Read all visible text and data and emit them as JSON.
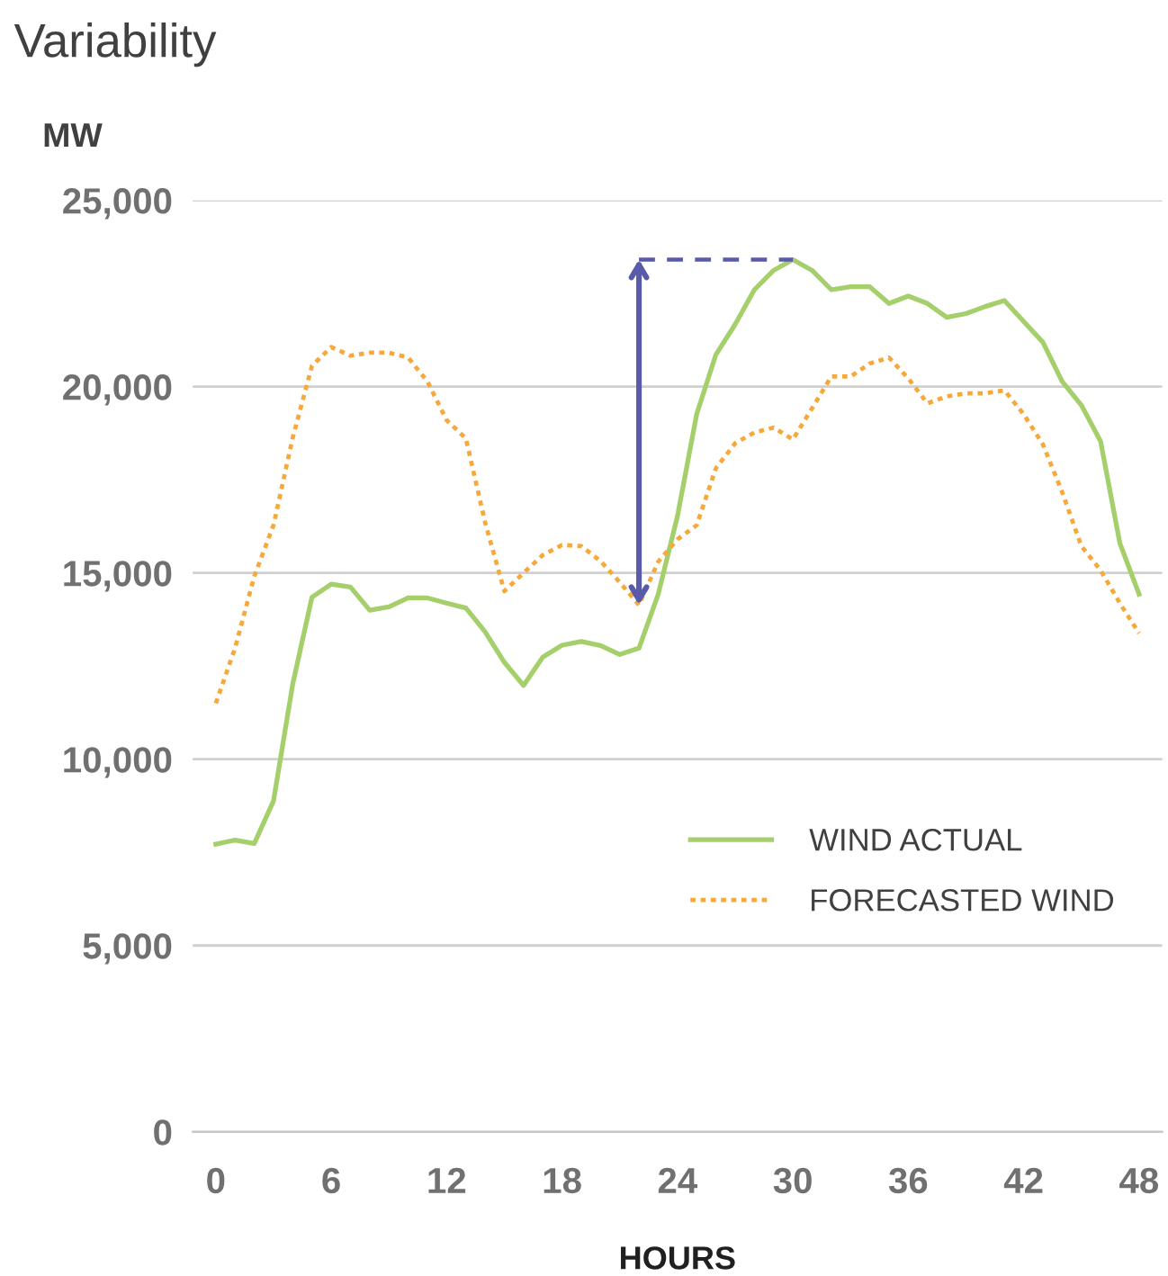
{
  "chart_data": {
    "type": "line",
    "title": "Variability",
    "ylabel": "MW",
    "xlabel": "HOURS",
    "x": [
      0,
      1,
      2,
      3,
      4,
      5,
      6,
      7,
      8,
      9,
      10,
      11,
      12,
      13,
      14,
      15,
      16,
      17,
      18,
      19,
      20,
      21,
      22,
      23,
      24,
      25,
      26,
      27,
      28,
      29,
      30,
      31,
      32,
      33,
      34,
      35,
      36,
      37,
      38,
      39,
      40,
      41,
      42,
      43,
      44,
      45,
      46,
      47,
      48
    ],
    "series": [
      {
        "name": "WIND ACTUAL",
        "color": "#a5cf6a",
        "line_style": "solid",
        "values": [
          7720,
          7830,
          7740,
          8880,
          12020,
          14350,
          14700,
          14620,
          14000,
          14090,
          14330,
          14330,
          14190,
          14060,
          13420,
          12600,
          11980,
          12740,
          13060,
          13160,
          13050,
          12810,
          12980,
          14430,
          16520,
          19260,
          20860,
          21670,
          22600,
          23120,
          23410,
          23120,
          22600,
          22680,
          22680,
          22230,
          22430,
          22230,
          21860,
          21960,
          22150,
          22310,
          21750,
          21190,
          20140,
          19500,
          18530,
          15800,
          14430
        ]
      },
      {
        "name": "FORECASTED WIND",
        "color": "#f7a83a",
        "line_style": "dotted",
        "values": [
          11500,
          12980,
          14910,
          16280,
          18630,
          20560,
          21060,
          20830,
          20910,
          20910,
          20780,
          20140,
          19100,
          18610,
          16360,
          14510,
          15000,
          15480,
          15750,
          15720,
          15320,
          14750,
          14140,
          15300,
          15900,
          16280,
          17810,
          18480,
          18770,
          18900,
          18580,
          19420,
          20270,
          20270,
          20620,
          20780,
          20220,
          19550,
          19740,
          19820,
          19820,
          19900,
          19260,
          18450,
          17170,
          15720,
          15070,
          14190,
          13380
        ]
      }
    ],
    "xlim": [
      -1.2,
      49.2
    ],
    "xticks": [
      0,
      6,
      12,
      18,
      24,
      30,
      36,
      42,
      48
    ],
    "ylim": [
      0,
      25000
    ],
    "yticks": [
      {
        "value": 0,
        "label": "0"
      },
      {
        "value": 5000,
        "label": "5,000"
      },
      {
        "value": 10000,
        "label": "10,000"
      },
      {
        "value": 15000,
        "label": "15,000"
      },
      {
        "value": 20000,
        "label": "20,000"
      },
      {
        "value": 25000,
        "label": "25,000"
      }
    ],
    "grid": "y",
    "legend": "bottom right",
    "marker": "none"
  }
}
